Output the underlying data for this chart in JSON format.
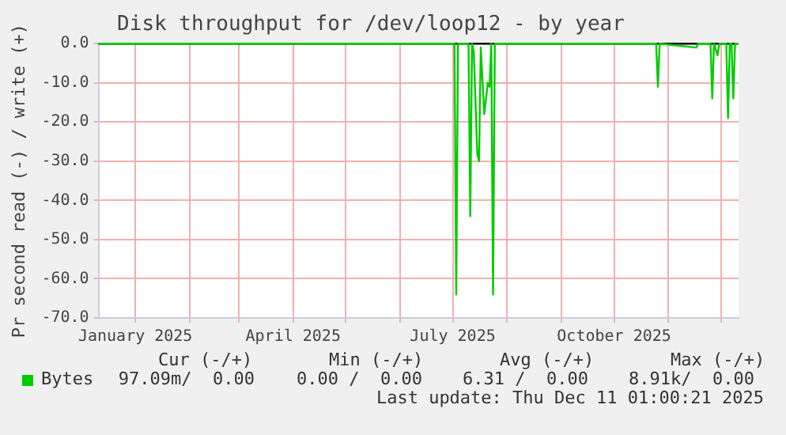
{
  "chart_data": {
    "type": "line",
    "title": "Disk throughput for /dev/loop12 - by year",
    "ylabel": "Pr second read (-) / write (+)",
    "x": [
      "2024-12-11",
      "2025-07-02",
      "2025-07-03",
      "2025-07-04",
      "2025-07-10",
      "2025-07-11",
      "2025-07-12",
      "2025-07-13",
      "2025-07-15",
      "2025-07-16",
      "2025-07-17",
      "2025-07-19",
      "2025-07-21",
      "2025-07-22",
      "2025-07-23",
      "2025-07-24",
      "2025-07-25",
      "2025-10-25",
      "2025-10-26",
      "2025-10-27",
      "2025-11-17",
      "2025-11-18",
      "2025-11-25",
      "2025-11-26",
      "2025-11-27",
      "2025-11-29",
      "2025-11-30",
      "2025-12-04",
      "2025-12-05",
      "2025-12-06",
      "2025-12-07",
      "2025-12-08",
      "2025-12-09",
      "2025-12-11"
    ],
    "series": [
      {
        "name": "Bytes",
        "color": "#00cc00",
        "values": [
          0,
          0,
          -64,
          0,
          0,
          -44,
          0,
          -2,
          -28,
          -30,
          -1,
          -18,
          -10,
          -11,
          0,
          -64,
          0,
          0,
          -11,
          0,
          -1,
          0,
          0,
          -14,
          0,
          -3,
          0,
          0,
          -19,
          0,
          0,
          -14,
          0,
          0
        ]
      }
    ],
    "xlim": [
      "2024-12-11",
      "2025-12-11"
    ],
    "xticks": [
      {
        "value": "2025-01-01",
        "label": "January 2025"
      },
      {
        "value": "2025-02-01",
        "label": null
      },
      {
        "value": "2025-03-01",
        "label": null
      },
      {
        "value": "2025-04-01",
        "label": "April 2025"
      },
      {
        "value": "2025-05-01",
        "label": null
      },
      {
        "value": "2025-06-01",
        "label": null
      },
      {
        "value": "2025-07-01",
        "label": "July 2025"
      },
      {
        "value": "2025-08-01",
        "label": null
      },
      {
        "value": "2025-09-01",
        "label": null
      },
      {
        "value": "2025-10-01",
        "label": "October 2025"
      },
      {
        "value": "2025-11-01",
        "label": null
      },
      {
        "value": "2025-12-01",
        "label": null
      }
    ],
    "ylim": [
      -70,
      0
    ],
    "yticks": [
      {
        "value": -70,
        "label": "-70.0"
      },
      {
        "value": -60,
        "label": "-60.0"
      },
      {
        "value": -50,
        "label": "-50.0"
      },
      {
        "value": -40,
        "label": "-40.0"
      },
      {
        "value": -30,
        "label": "-30.0"
      },
      {
        "value": -20,
        "label": "-20.0"
      },
      {
        "value": -10,
        "label": "-10.0"
      },
      {
        "value": 0,
        "label": "0.0"
      }
    ],
    "ref_lines": [
      {
        "axis": "y",
        "value": 0,
        "color": "#000000"
      }
    ],
    "grid": true,
    "legend": "bottom left",
    "marker": "none",
    "line_style": "solid",
    "annotations": [
      "Cur (-/+)",
      "Min (-/+)",
      "Avg (-/+)",
      "Max (-/+)",
      "97.09m/  0.00",
      "0.00 /  0.00",
      "6.31 /  0.00",
      "8.91k/  0.00",
      "Last update: Thu Dec 11 01:00:21 2025"
    ]
  }
}
